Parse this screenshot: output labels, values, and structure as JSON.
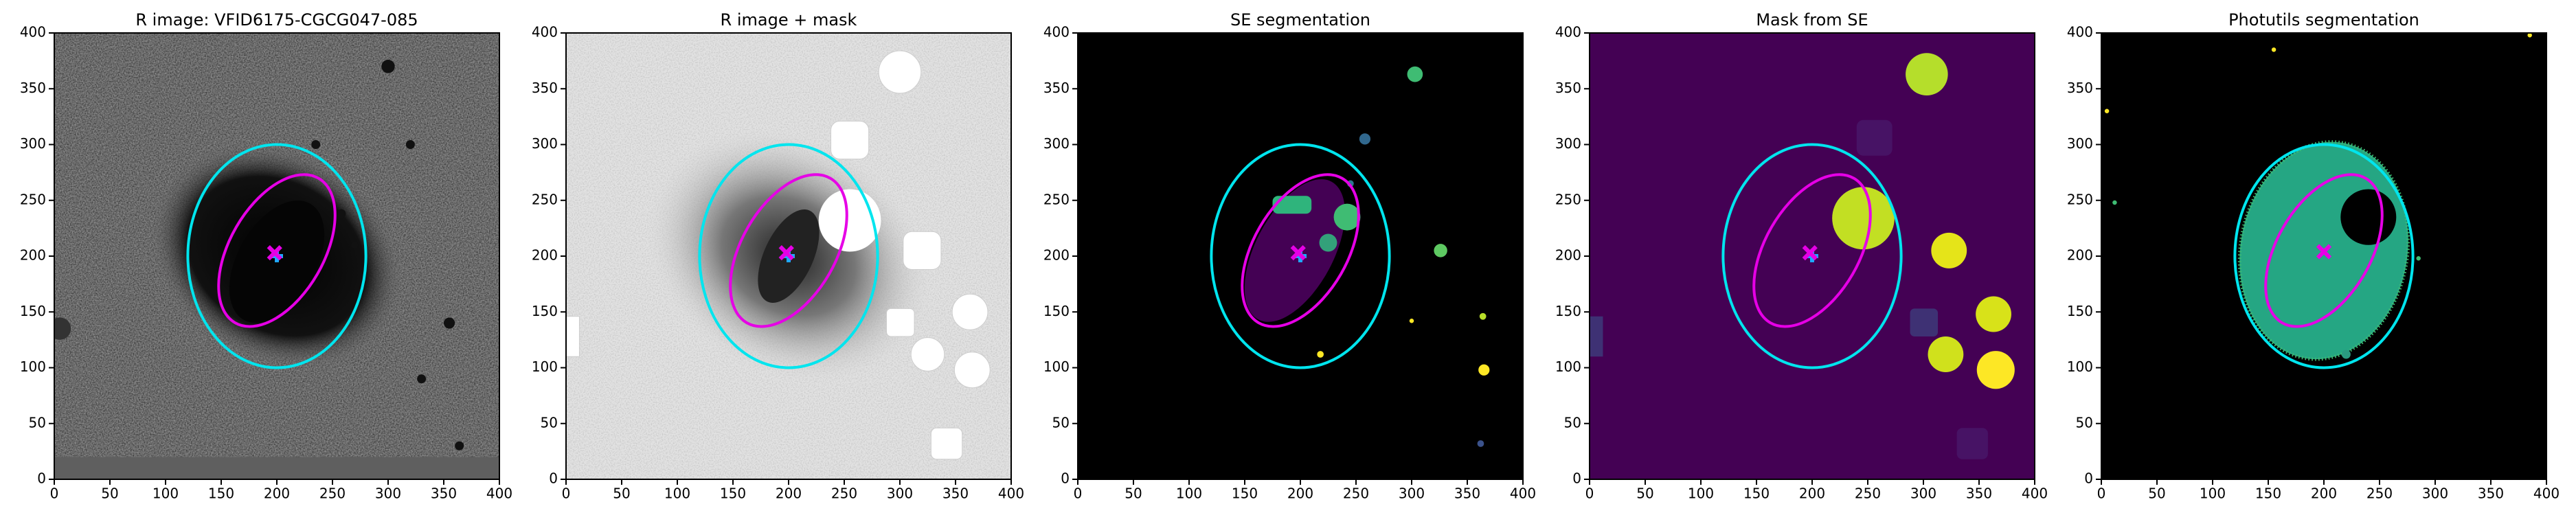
{
  "chart_data": [
    {
      "type": "image",
      "title": "R image: VFID6175-CGCG047-085",
      "xlim": [
        0,
        400
      ],
      "ylim": [
        0,
        400
      ],
      "xticks": [
        0,
        50,
        100,
        150,
        200,
        250,
        300,
        350,
        400
      ],
      "yticks": [
        0,
        50,
        100,
        150,
        200,
        250,
        300,
        350,
        400
      ],
      "ellipses": [
        {
          "cx": 200,
          "cy": 200,
          "rx": 80,
          "ry": 100,
          "angle": 0,
          "color": "#00e5ee"
        },
        {
          "cx": 200,
          "cy": 205,
          "rx": 75,
          "ry": 42,
          "angle": 60,
          "color": "#e600e6"
        }
      ],
      "markers": [
        {
          "x": 200,
          "y": 200,
          "symbol": "+",
          "color": "#1fa8ff"
        },
        {
          "x": 198,
          "y": 203,
          "symbol": "x",
          "color": "#e600e6"
        }
      ]
    },
    {
      "type": "image",
      "title": "R image + mask",
      "xlim": [
        0,
        400
      ],
      "ylim": [
        0,
        400
      ],
      "xticks": [
        0,
        50,
        100,
        150,
        200,
        250,
        300,
        350,
        400
      ],
      "yticks": [
        0,
        50,
        100,
        150,
        200,
        250,
        300,
        350,
        400
      ],
      "ellipses": [
        {
          "cx": 200,
          "cy": 200,
          "rx": 80,
          "ry": 100,
          "angle": 0,
          "color": "#00e5ee"
        },
        {
          "cx": 200,
          "cy": 205,
          "rx": 75,
          "ry": 42,
          "angle": 60,
          "color": "#e600e6"
        }
      ],
      "markers": [
        {
          "x": 200,
          "y": 200,
          "symbol": "+",
          "color": "#1fa8ff"
        },
        {
          "x": 198,
          "y": 203,
          "symbol": "x",
          "color": "#e600e6"
        }
      ]
    },
    {
      "type": "image",
      "title": "SE segmentation",
      "xlim": [
        0,
        400
      ],
      "ylim": [
        0,
        400
      ],
      "xticks": [
        0,
        50,
        100,
        150,
        200,
        250,
        300,
        350,
        400
      ],
      "yticks": [
        0,
        50,
        100,
        150,
        200,
        250,
        300,
        350,
        400
      ],
      "ellipses": [
        {
          "cx": 200,
          "cy": 200,
          "rx": 80,
          "ry": 100,
          "angle": 0,
          "color": "#00e5ee"
        },
        {
          "cx": 200,
          "cy": 205,
          "rx": 75,
          "ry": 42,
          "angle": 60,
          "color": "#e600e6"
        }
      ],
      "markers": [
        {
          "x": 200,
          "y": 200,
          "symbol": "+",
          "color": "#1fa8ff"
        },
        {
          "x": 198,
          "y": 203,
          "symbol": "x",
          "color": "#e600e6"
        }
      ]
    },
    {
      "type": "image",
      "title": "Mask from SE",
      "xlim": [
        0,
        400
      ],
      "ylim": [
        0,
        400
      ],
      "xticks": [
        0,
        50,
        100,
        150,
        200,
        250,
        300,
        350,
        400
      ],
      "yticks": [
        0,
        50,
        100,
        150,
        200,
        250,
        300,
        350,
        400
      ],
      "ellipses": [
        {
          "cx": 200,
          "cy": 200,
          "rx": 80,
          "ry": 100,
          "angle": 0,
          "color": "#00e5ee"
        },
        {
          "cx": 200,
          "cy": 205,
          "rx": 75,
          "ry": 42,
          "angle": 60,
          "color": "#e600e6"
        }
      ],
      "markers": [
        {
          "x": 200,
          "y": 200,
          "symbol": "+",
          "color": "#1fa8ff"
        },
        {
          "x": 198,
          "y": 203,
          "symbol": "x",
          "color": "#e600e6"
        }
      ]
    },
    {
      "type": "image",
      "title": "Photutils segmentation",
      "xlim": [
        0,
        400
      ],
      "ylim": [
        0,
        400
      ],
      "xticks": [
        0,
        50,
        100,
        150,
        200,
        250,
        300,
        350,
        400
      ],
      "yticks": [
        0,
        50,
        100,
        150,
        200,
        250,
        300,
        350,
        400
      ],
      "ellipses": [
        {
          "cx": 200,
          "cy": 200,
          "rx": 80,
          "ry": 100,
          "angle": 0,
          "color": "#00e5ee"
        },
        {
          "cx": 200,
          "cy": 205,
          "rx": 75,
          "ry": 42,
          "angle": 60,
          "color": "#e600e6"
        }
      ],
      "markers": [
        {
          "x": 200,
          "y": 204,
          "symbol": "x",
          "color": "#e600e6"
        }
      ]
    }
  ]
}
